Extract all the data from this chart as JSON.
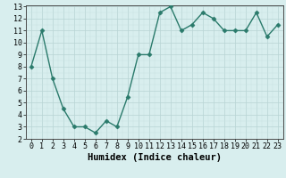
{
  "x": [
    0,
    1,
    2,
    3,
    4,
    5,
    6,
    7,
    8,
    9,
    10,
    11,
    12,
    13,
    14,
    15,
    16,
    17,
    18,
    19,
    20,
    21,
    22,
    23
  ],
  "y": [
    8.0,
    11.0,
    7.0,
    4.5,
    3.0,
    3.0,
    2.5,
    3.5,
    3.0,
    5.5,
    9.0,
    9.0,
    12.5,
    13.0,
    11.0,
    11.5,
    12.5,
    12.0,
    11.0,
    11.0,
    11.0,
    12.5,
    10.5,
    11.5
  ],
  "xlabel": "Humidex (Indice chaleur)",
  "ylim": [
    2,
    13
  ],
  "xlim": [
    -0.5,
    23.5
  ],
  "yticks": [
    2,
    3,
    4,
    5,
    6,
    7,
    8,
    9,
    10,
    11,
    12,
    13
  ],
  "xticks": [
    0,
    1,
    2,
    3,
    4,
    5,
    6,
    7,
    8,
    9,
    10,
    11,
    12,
    13,
    14,
    15,
    16,
    17,
    18,
    19,
    20,
    21,
    22,
    23
  ],
  "xtick_labels": [
    "0",
    "1",
    "2",
    "3",
    "4",
    "5",
    "6",
    "7",
    "8",
    "9",
    "10",
    "11",
    "12",
    "13",
    "14",
    "15",
    "16",
    "17",
    "18",
    "19",
    "20",
    "21",
    "22",
    "23"
  ],
  "line_color": "#2a7a6b",
  "marker": "D",
  "marker_size": 2.5,
  "background_color": "#d8eeee",
  "grid_major_color": "#b8d4d4",
  "grid_minor_color": "#c8e0e0",
  "xlabel_fontsize": 7.5,
  "tick_fontsize": 6,
  "linewidth": 1.0
}
